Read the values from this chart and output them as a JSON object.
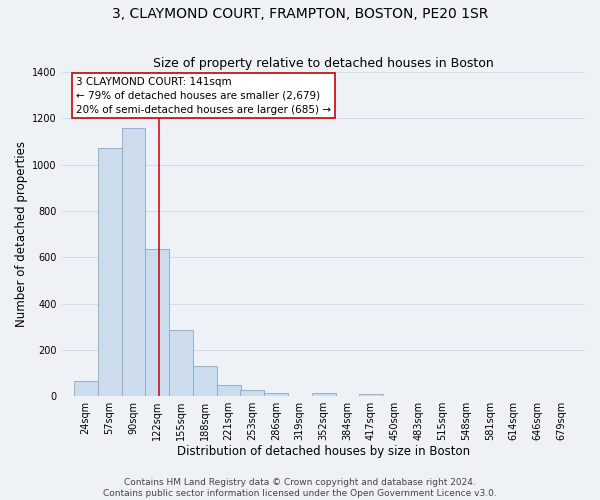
{
  "title1": "3, CLAYMOND COURT, FRAMPTON, BOSTON, PE20 1SR",
  "title2": "Size of property relative to detached houses in Boston",
  "xlabel": "Distribution of detached houses by size in Boston",
  "ylabel": "Number of detached properties",
  "bar_color": "#ccdcec",
  "bar_edge_color": "#7aaaccb",
  "background_color": "#eef2f7",
  "bins": [
    "24sqm",
    "57sqm",
    "90sqm",
    "122sqm",
    "155sqm",
    "188sqm",
    "221sqm",
    "253sqm",
    "286sqm",
    "319sqm",
    "352sqm",
    "384sqm",
    "417sqm",
    "450sqm",
    "483sqm",
    "515sqm",
    "548sqm",
    "581sqm",
    "614sqm",
    "646sqm",
    "679sqm"
  ],
  "values": [
    65,
    1070,
    1160,
    635,
    285,
    130,
    48,
    25,
    15,
    0,
    15,
    0,
    8,
    0,
    0,
    0,
    0,
    0,
    0,
    0,
    0
  ],
  "bin_width": 33,
  "bin_starts": [
    24,
    57,
    90,
    122,
    155,
    188,
    221,
    253,
    286,
    319,
    352,
    384,
    417,
    450,
    483,
    515,
    548,
    581,
    614,
    646,
    679
  ],
  "vline_x": 141,
  "vline_color": "#cc0000",
  "ylim": [
    0,
    1400
  ],
  "yticks": [
    0,
    200,
    400,
    600,
    800,
    1000,
    1200,
    1400
  ],
  "annotation_title": "3 CLAYMOND COURT: 141sqm",
  "annotation_line1": "← 79% of detached houses are smaller (2,679)",
  "annotation_line2": "20% of semi-detached houses are larger (685) →",
  "annotation_box_color": "#ffffff",
  "annotation_border_color": "#cc0000",
  "footer1": "Contains HM Land Registry data © Crown copyright and database right 2024.",
  "footer2": "Contains public sector information licensed under the Open Government Licence v3.0.",
  "grid_color": "#c8d8ea",
  "title_fontsize": 10,
  "subtitle_fontsize": 9,
  "axis_label_fontsize": 8.5,
  "tick_fontsize": 7,
  "footer_fontsize": 6.5,
  "annotation_fontsize": 7.5
}
